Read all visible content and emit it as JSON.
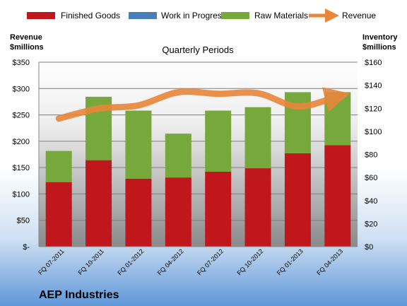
{
  "chart_data": {
    "type": "bar",
    "stacked": true,
    "title": "Quarterly Periods",
    "footer": "AEP Industries",
    "categories": [
      "FQ 07-2011",
      "FQ 10-2011",
      "FQ 01-2012",
      "FQ 04-2012",
      "FQ 07-2012",
      "FQ 10-2012",
      "FQ 01-2013",
      "FQ 04-2013"
    ],
    "series": [
      {
        "name": "Finished Goods",
        "color": "#c0171c",
        "axis": "right",
        "values": [
          56,
          75,
          59,
          60,
          65,
          68,
          81,
          88
        ]
      },
      {
        "name": "Work in Progress",
        "color": "#4a7ebb",
        "axis": "right",
        "values": [
          0,
          0,
          0,
          0,
          0,
          0,
          0,
          0
        ]
      },
      {
        "name": "Raw Materials",
        "color": "#77a83c",
        "axis": "right",
        "values": [
          27,
          55,
          59,
          38,
          53,
          53,
          53,
          46
        ]
      },
      {
        "name": "Revenue",
        "color": "#e8873a",
        "axis": "left",
        "type": "line",
        "values": [
          243,
          262,
          268,
          293,
          290,
          291,
          266,
          285
        ]
      }
    ],
    "left_axis": {
      "label_line1": "Revenue",
      "label_line2": "$millions",
      "ylim": [
        0,
        350
      ],
      "ticks": [
        "$-",
        "$50",
        "$100",
        "$150",
        "$200",
        "$250",
        "$300",
        "$350"
      ]
    },
    "right_axis": {
      "label_line1": "Inventory",
      "label_line2": "$millions",
      "ylim": [
        0,
        160
      ],
      "ticks": [
        "$0",
        "$20",
        "$40",
        "$60",
        "$80",
        "$100",
        "$120",
        "$140",
        "$160"
      ]
    },
    "legend_position": "top",
    "grid": true
  }
}
